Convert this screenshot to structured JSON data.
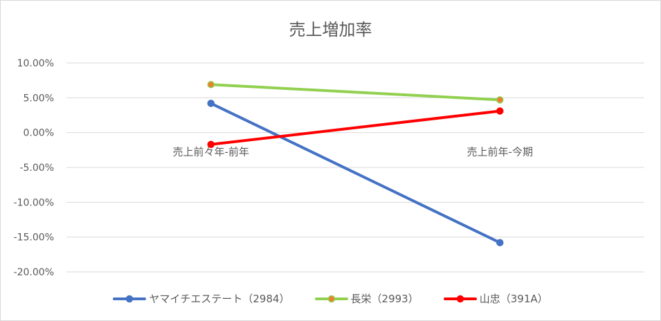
{
  "chart_data": {
    "type": "line",
    "title": "売上増加率",
    "categories": [
      "売上前々年-前年",
      "売上前年-今期"
    ],
    "y_ticks": [
      "10.00%",
      "5.00%",
      "0.00%",
      "-5.00%",
      "-10.00%",
      "-15.00%",
      "-20.00%"
    ],
    "ylim": [
      -20,
      10
    ],
    "y_unit": "%",
    "grid": true,
    "legend_position": "bottom",
    "series": [
      {
        "name": "ヤマイチエステート（2984）",
        "values": [
          4.2,
          -15.8
        ],
        "color": "#4472c4",
        "marker_fill": "#4472c4"
      },
      {
        "name": "長栄（2993）",
        "values": [
          6.9,
          4.7
        ],
        "color": "#92d050",
        "marker_fill": "#ed7d31"
      },
      {
        "name": "山忠（391A）",
        "values": [
          -1.7,
          3.1
        ],
        "color": "#ff0000",
        "marker_fill": "#ff0000"
      }
    ]
  }
}
